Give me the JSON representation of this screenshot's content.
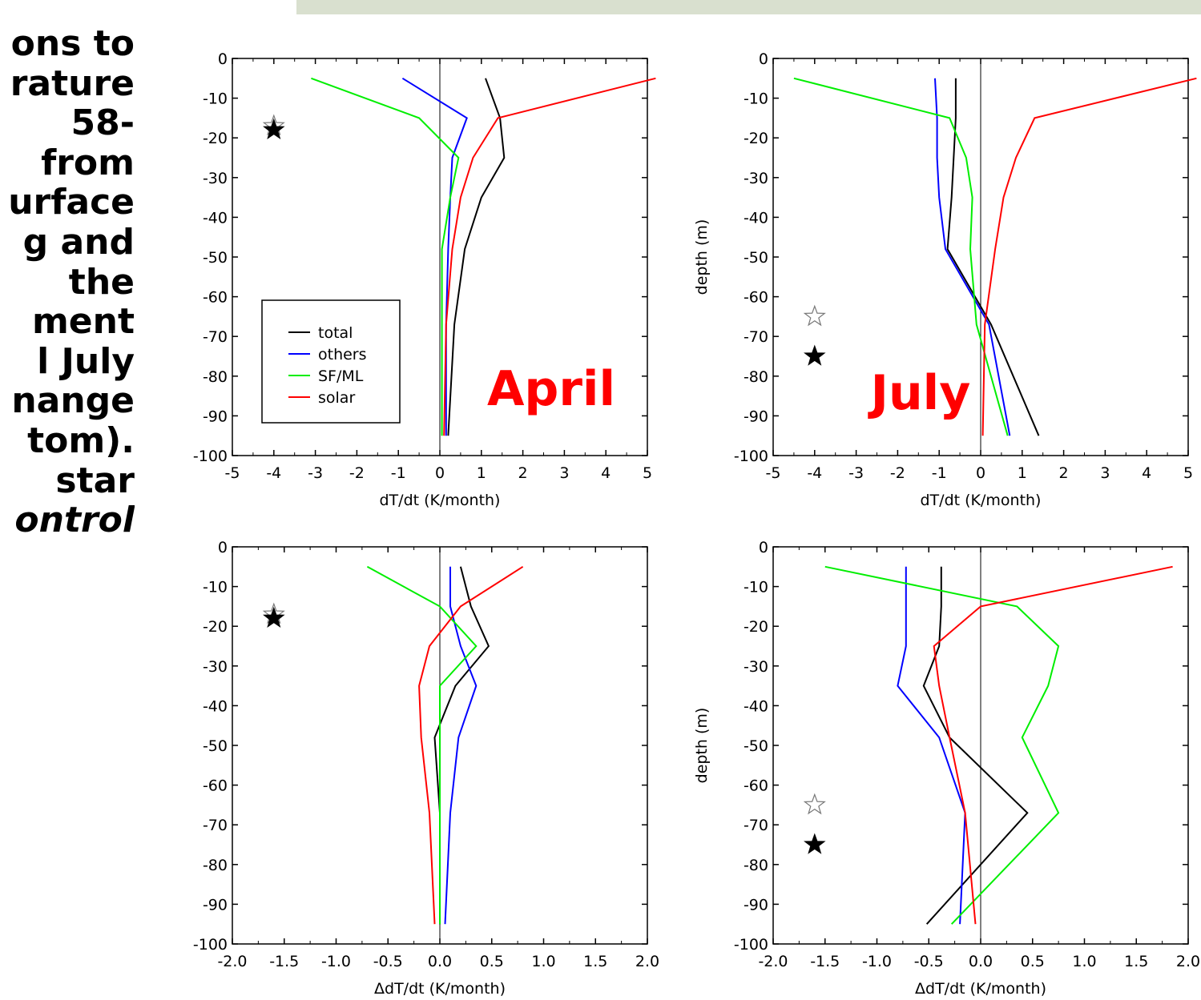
{
  "left_caption": {
    "lines": [
      {
        "text": "ons to",
        "italic": false
      },
      {
        "text": "rature",
        "italic": false
      },
      {
        "text": "58-",
        "italic": false
      },
      {
        "text": "from",
        "italic": false
      },
      {
        "text": "urface",
        "italic": false
      },
      {
        "text": "g and",
        "italic": false
      },
      {
        "text": "the",
        "italic": false
      },
      {
        "text": "ment",
        "italic": false
      },
      {
        "text": "l July",
        "italic": false
      },
      {
        "text": "nange",
        "italic": false
      },
      {
        "text": "tom).",
        "italic": false
      },
      {
        "text": "star",
        "italic": false
      },
      {
        "text": "ontrol",
        "italic": true
      }
    ]
  },
  "colors": {
    "total": "#000000",
    "others": "#0000ff",
    "SF/ML": "#00ee00",
    "solar": "#ff0000",
    "top_band": "#d9e0cf"
  },
  "legend": {
    "entries": [
      {
        "label": "total",
        "color": "#000000"
      },
      {
        "label": "others",
        "color": "#0000ff"
      },
      {
        "label": "SF/ML",
        "color": "#00ee00"
      },
      {
        "label": "solar",
        "color": "#ff0000"
      }
    ],
    "placement": "lower-left of top-left panel"
  },
  "chart_data": [
    {
      "type": "line",
      "panel": "top-left",
      "month_label": "April",
      "xlabel": "dT/dt (K/month)",
      "ylabel": "",
      "xlim": [
        -5,
        5
      ],
      "ylim": [
        -100,
        0
      ],
      "xticks": [
        "-5",
        "-4",
        "-3",
        "-2",
        "-1",
        "0",
        "1",
        "2",
        "3",
        "4",
        "5"
      ],
      "yticks": [
        "0",
        "-10",
        "-20",
        "-30",
        "-40",
        "-50",
        "-60",
        "-70",
        "-80",
        "-90",
        "-100"
      ],
      "show_legend": true,
      "stars": [
        {
          "x": -4,
          "y": -17,
          "filled": false
        },
        {
          "x": -4,
          "y": -18,
          "filled": true
        }
      ],
      "series": [
        {
          "name": "total",
          "x": [
            1.1,
            1.45,
            1.55,
            1.0,
            0.6,
            0.35,
            0.2
          ],
          "y": [
            -5,
            -15,
            -25,
            -35,
            -48,
            -67,
            -95
          ]
        },
        {
          "name": "others",
          "x": [
            -0.9,
            0.65,
            0.3,
            0.25,
            0.2,
            0.15,
            0.15
          ],
          "y": [
            -5,
            -15,
            -25,
            -35,
            -48,
            -67,
            -95
          ]
        },
        {
          "name": "SF/ML",
          "x": [
            -3.1,
            -0.5,
            0.45,
            0.25,
            0.05,
            0.05,
            0.05
          ],
          "y": [
            -5,
            -15,
            -25,
            -35,
            -48,
            -67,
            -95
          ]
        },
        {
          "name": "solar",
          "x": [
            5.2,
            1.4,
            0.8,
            0.5,
            0.3,
            0.15,
            0.1
          ],
          "y": [
            -5,
            -15,
            -25,
            -35,
            -48,
            -67,
            -95
          ]
        }
      ]
    },
    {
      "type": "line",
      "panel": "top-right",
      "month_label": "July",
      "xlabel": "dT/dt (K/month)",
      "ylabel": "depth (m)",
      "xlim": [
        -5,
        5
      ],
      "ylim": [
        -100,
        0
      ],
      "xticks": [
        "-5",
        "-4",
        "-3",
        "-2",
        "-1",
        "0",
        "1",
        "2",
        "3",
        "4",
        "5"
      ],
      "yticks": [
        "0",
        "-10",
        "-20",
        "-30",
        "-40",
        "-50",
        "-60",
        "-70",
        "-80",
        "-90",
        "-100"
      ],
      "show_legend": false,
      "stars": [
        {
          "x": -4,
          "y": -65,
          "filled": false
        },
        {
          "x": -4,
          "y": -75,
          "filled": true
        }
      ],
      "series": [
        {
          "name": "total",
          "x": [
            -0.6,
            -0.6,
            -0.65,
            -0.7,
            -0.8,
            0.25,
            1.4
          ],
          "y": [
            -5,
            -15,
            -25,
            -35,
            -48,
            -67,
            -95
          ]
        },
        {
          "name": "others",
          "x": [
            -1.1,
            -1.05,
            -1.05,
            -1.0,
            -0.85,
            0.2,
            0.7
          ],
          "y": [
            -5,
            -15,
            -25,
            -35,
            -48,
            -67,
            -95
          ]
        },
        {
          "name": "SF/ML",
          "x": [
            -4.5,
            -0.75,
            -0.35,
            -0.2,
            -0.25,
            -0.1,
            0.65
          ],
          "y": [
            -5,
            -15,
            -25,
            -35,
            -48,
            -67,
            -95
          ]
        },
        {
          "name": "solar",
          "x": [
            5.2,
            1.3,
            0.85,
            0.55,
            0.35,
            0.1,
            0.05
          ],
          "y": [
            -5,
            -15,
            -25,
            -35,
            -48,
            -67,
            -95
          ]
        }
      ]
    },
    {
      "type": "line",
      "panel": "bottom-left",
      "month_label": "",
      "xlabel": "ΔdT/dt (K/month)",
      "ylabel": "",
      "xlim": [
        -2,
        2
      ],
      "ylim": [
        -100,
        0
      ],
      "xticks": [
        "-2.0",
        "-1.5",
        "-1.0",
        "-0.5",
        "0.0",
        "0.5",
        "1.0",
        "1.5",
        "2.0"
      ],
      "yticks": [
        "0",
        "-10",
        "-20",
        "-30",
        "-40",
        "-50",
        "-60",
        "-70",
        "-80",
        "-90",
        "-100"
      ],
      "show_legend": false,
      "stars": [
        {
          "x": -1.6,
          "y": -17,
          "filled": false
        },
        {
          "x": -1.6,
          "y": -18,
          "filled": true
        }
      ],
      "series": [
        {
          "name": "total",
          "x": [
            0.2,
            0.3,
            0.47,
            0.15,
            -0.05,
            0.0,
            0.0
          ],
          "y": [
            -5,
            -15,
            -25,
            -35,
            -48,
            -67,
            -95
          ]
        },
        {
          "name": "others",
          "x": [
            0.1,
            0.1,
            0.2,
            0.35,
            0.18,
            0.1,
            0.05
          ],
          "y": [
            -5,
            -15,
            -25,
            -35,
            -48,
            -67,
            -95
          ]
        },
        {
          "name": "SF/ML",
          "x": [
            -0.7,
            0.0,
            0.35,
            0.0,
            0.0,
            0.0,
            0.0
          ],
          "y": [
            -5,
            -15,
            -25,
            -35,
            -48,
            -67,
            -95
          ]
        },
        {
          "name": "solar",
          "x": [
            0.8,
            0.2,
            -0.1,
            -0.2,
            -0.18,
            -0.1,
            -0.05
          ],
          "y": [
            -5,
            -15,
            -25,
            -35,
            -48,
            -67,
            -95
          ]
        }
      ]
    },
    {
      "type": "line",
      "panel": "bottom-right",
      "month_label": "",
      "xlabel": "ΔdT/dt (K/month)",
      "ylabel": "depth (m)",
      "xlim": [
        -2,
        2
      ],
      "ylim": [
        -100,
        0
      ],
      "xticks": [
        "-2.0",
        "-1.5",
        "-1.0",
        "-0.5",
        "0.0",
        "0.5",
        "1.0",
        "1.5",
        "2.0"
      ],
      "yticks": [
        "0",
        "-10",
        "-20",
        "-30",
        "-40",
        "-50",
        "-60",
        "-70",
        "-80",
        "-90",
        "-100"
      ],
      "show_legend": false,
      "stars": [
        {
          "x": -1.6,
          "y": -65,
          "filled": false
        },
        {
          "x": -1.6,
          "y": -75,
          "filled": true
        }
      ],
      "series": [
        {
          "name": "total",
          "x": [
            -0.38,
            -0.38,
            -0.4,
            -0.55,
            -0.3,
            0.45,
            -0.52
          ],
          "y": [
            -5,
            -15,
            -25,
            -35,
            -48,
            -67,
            -95
          ]
        },
        {
          "name": "others",
          "x": [
            -0.72,
            -0.72,
            -0.72,
            -0.8,
            -0.4,
            -0.15,
            -0.2
          ],
          "y": [
            -5,
            -15,
            -25,
            -35,
            -48,
            -67,
            -95
          ]
        },
        {
          "name": "SF/ML",
          "x": [
            -1.5,
            0.35,
            0.75,
            0.65,
            0.4,
            0.75,
            -0.28
          ],
          "y": [
            -5,
            -15,
            -25,
            -35,
            -48,
            -67,
            -95
          ]
        },
        {
          "name": "solar",
          "x": [
            1.85,
            0.0,
            -0.45,
            -0.4,
            -0.3,
            -0.15,
            -0.05
          ],
          "y": [
            -5,
            -15,
            -25,
            -35,
            -48,
            -67,
            -95
          ]
        }
      ]
    }
  ]
}
